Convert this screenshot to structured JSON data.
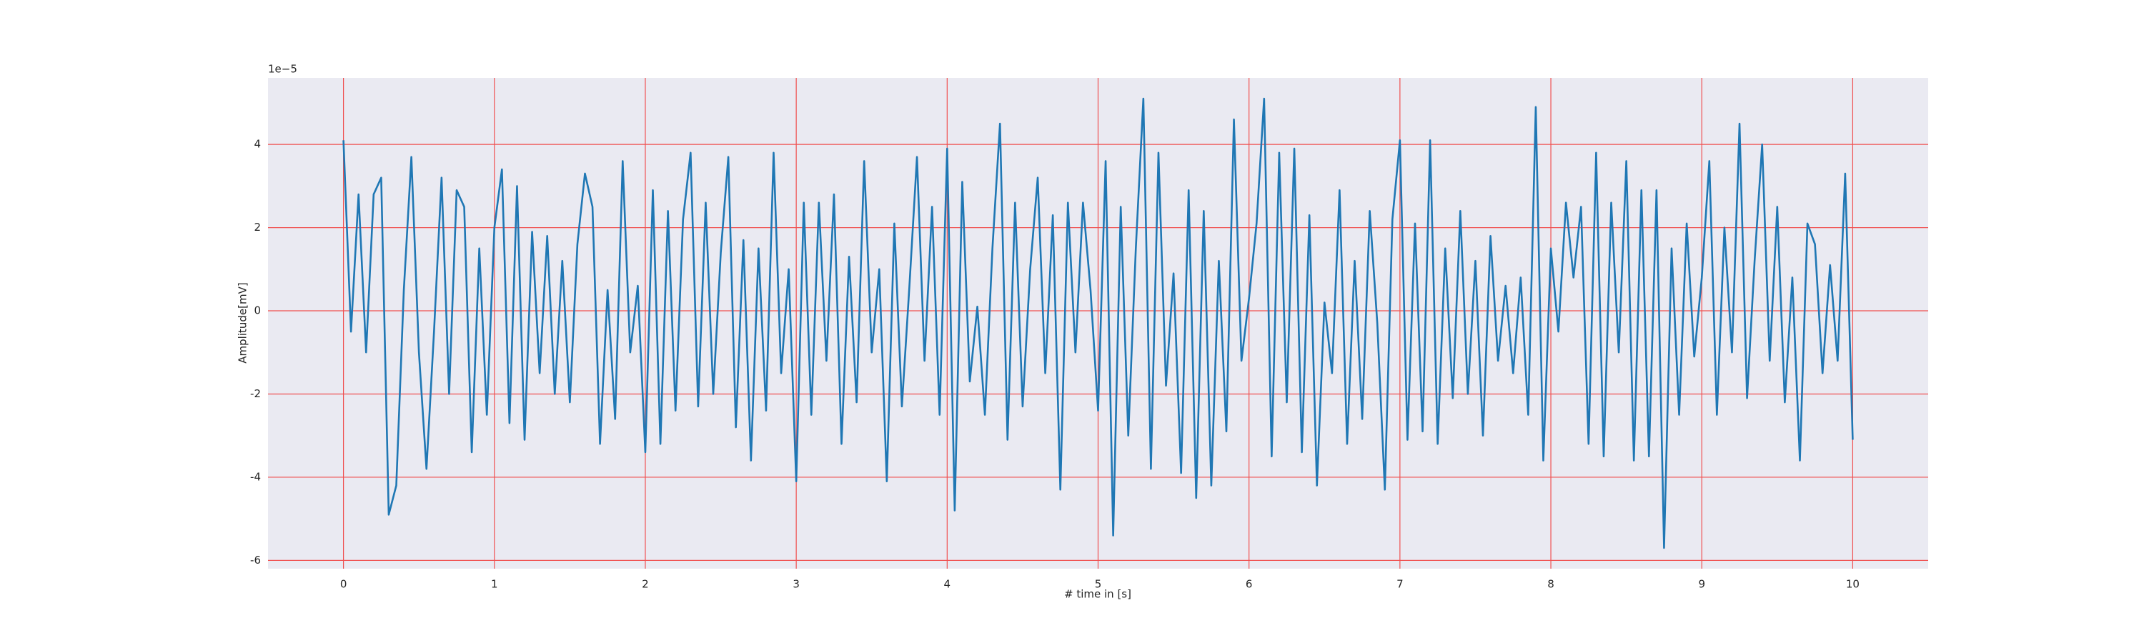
{
  "chart_data": {
    "type": "line",
    "offset_label": "1e−5",
    "xlabel": "# time in [s]",
    "ylabel": "Amplitude[mV]",
    "color": "#1f77b4",
    "grid": true,
    "grid_color": "#f05050",
    "xlim": [
      -0.5,
      10.5
    ],
    "ylim": [
      -6.2,
      5.6
    ],
    "xticks": [
      0,
      1,
      2,
      3,
      4,
      5,
      6,
      7,
      8,
      9,
      10
    ],
    "yticks": [
      -6,
      -4,
      -2,
      0,
      2,
      4
    ],
    "x": [
      0,
      0.05,
      0.1,
      0.15,
      0.2,
      0.25,
      0.3,
      0.35,
      0.4,
      0.45,
      0.5,
      0.55,
      0.6,
      0.65,
      0.7,
      0.75,
      0.8,
      0.85,
      0.9,
      0.95,
      1,
      1.05,
      1.1,
      1.15,
      1.2,
      1.25,
      1.3,
      1.35,
      1.4,
      1.45,
      1.5,
      1.55,
      1.6,
      1.65,
      1.7,
      1.75,
      1.8,
      1.85,
      1.9,
      1.95,
      2,
      2.05,
      2.1,
      2.15,
      2.2,
      2.25,
      2.3,
      2.35,
      2.4,
      2.45,
      2.5,
      2.55,
      2.6,
      2.65,
      2.7,
      2.75,
      2.8,
      2.85,
      2.9,
      2.95,
      3,
      3.05,
      3.1,
      3.15,
      3.2,
      3.25,
      3.3,
      3.35,
      3.4,
      3.45,
      3.5,
      3.55,
      3.6,
      3.65,
      3.7,
      3.75,
      3.8,
      3.85,
      3.9,
      3.95,
      4,
      4.05,
      4.1,
      4.15,
      4.2,
      4.25,
      4.3,
      4.35,
      4.4,
      4.45,
      4.5,
      4.55,
      4.6,
      4.65,
      4.7,
      4.75,
      4.8,
      4.85,
      4.9,
      4.95,
      5,
      5.05,
      5.1,
      5.15,
      5.2,
      5.25,
      5.3,
      5.35,
      5.4,
      5.45,
      5.5,
      5.55,
      5.6,
      5.65,
      5.7,
      5.75,
      5.8,
      5.85,
      5.9,
      5.95,
      6,
      6.05,
      6.1,
      6.15,
      6.2,
      6.25,
      6.3,
      6.35,
      6.4,
      6.45,
      6.5,
      6.55,
      6.6,
      6.65,
      6.7,
      6.75,
      6.8,
      6.85,
      6.9,
      6.95,
      7,
      7.05,
      7.1,
      7.15,
      7.2,
      7.25,
      7.3,
      7.35,
      7.4,
      7.45,
      7.5,
      7.55,
      7.6,
      7.65,
      7.7,
      7.75,
      7.8,
      7.85,
      7.9,
      7.95,
      8,
      8.05,
      8.1,
      8.15,
      8.2,
      8.25,
      8.3,
      8.35,
      8.4,
      8.45,
      8.5,
      8.55,
      8.6,
      8.65,
      8.7,
      8.75,
      8.8,
      8.85,
      8.9,
      8.95,
      9,
      9.05,
      9.1,
      9.15,
      9.2,
      9.25,
      9.3,
      9.35,
      9.4,
      9.45,
      9.5,
      9.55,
      9.6,
      9.65,
      9.7,
      9.75,
      9.8,
      9.85,
      9.9,
      9.95,
      10
    ],
    "values": [
      4.1,
      -0.5,
      2.8,
      -1.0,
      2.8,
      3.2,
      -4.9,
      -4.2,
      0.5,
      3.7,
      -1.0,
      -3.8,
      -0.5,
      3.2,
      -2.0,
      2.9,
      2.5,
      -3.4,
      1.5,
      -2.5,
      2.0,
      3.4,
      -2.7,
      3.0,
      -3.1,
      1.9,
      -1.5,
      1.8,
      -2.0,
      1.2,
      -2.2,
      1.6,
      3.3,
      2.5,
      -3.2,
      0.5,
      -2.6,
      3.6,
      -1.0,
      0.6,
      -3.4,
      2.9,
      -3.2,
      2.4,
      -2.4,
      2.2,
      3.8,
      -2.3,
      2.6,
      -2.0,
      1.4,
      3.7,
      -2.8,
      1.7,
      -3.6,
      1.5,
      -2.4,
      3.8,
      -1.5,
      1.0,
      -4.1,
      2.6,
      -2.5,
      2.6,
      -1.2,
      2.8,
      -3.2,
      1.3,
      -2.2,
      3.6,
      -1.0,
      1.0,
      -4.1,
      2.1,
      -2.3,
      0.6,
      3.7,
      -1.2,
      2.5,
      -2.5,
      3.9,
      -4.8,
      3.1,
      -1.7,
      0.1,
      -2.5,
      1.5,
      4.5,
      -3.1,
      2.6,
      -2.3,
      1.0,
      3.2,
      -1.5,
      2.3,
      -4.3,
      2.6,
      -1.0,
      2.6,
      0.5,
      -2.4,
      3.6,
      -5.4,
      2.5,
      -3.0,
      1.5,
      5.1,
      -3.8,
      3.8,
      -1.8,
      0.9,
      -3.9,
      2.9,
      -4.5,
      2.4,
      -4.2,
      1.2,
      -2.9,
      4.6,
      -1.2,
      0.3,
      2.1,
      5.1,
      -3.5,
      3.8,
      -2.2,
      3.9,
      -3.4,
      2.3,
      -4.2,
      0.2,
      -1.5,
      2.9,
      -3.2,
      1.2,
      -2.6,
      2.4,
      -0.3,
      -4.3,
      2.2,
      4.1,
      -3.1,
      2.1,
      -2.9,
      4.1,
      -3.2,
      1.5,
      -2.1,
      2.4,
      -2.0,
      1.2,
      -3.0,
      1.8,
      -1.2,
      0.6,
      -1.5,
      0.8,
      -2.5,
      4.9,
      -3.6,
      1.5,
      -0.5,
      2.6,
      0.8,
      2.5,
      -3.2,
      3.8,
      -3.5,
      2.6,
      -1.0,
      3.6,
      -3.6,
      2.9,
      -3.5,
      2.9,
      -5.7,
      1.5,
      -2.5,
      2.1,
      -1.1,
      0.8,
      3.6,
      -2.5,
      2.0,
      -1.0,
      4.5,
      -2.1,
      1.2,
      4.0,
      -1.2,
      2.5,
      -2.2,
      0.8,
      -3.6,
      2.1,
      1.6,
      -1.5,
      1.1,
      -1.2,
      3.3,
      -3.1
    ]
  }
}
